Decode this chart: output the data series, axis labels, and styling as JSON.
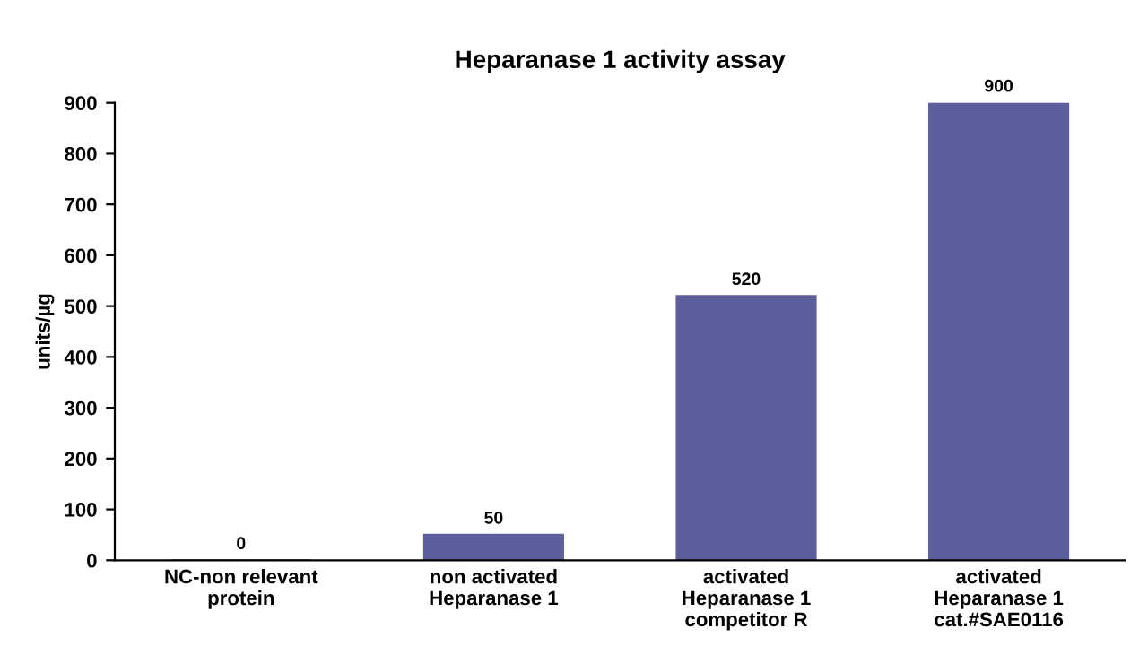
{
  "chart_data": {
    "type": "bar",
    "title": "Heparanase 1 activity assay",
    "ylabel": "units/µg",
    "categories": [
      "NC-non relevant\nprotein",
      "non activated\nHeparanase 1",
      "activated\nHeparanase 1\ncompetitor R",
      "activated\nHeparanase 1\ncat.#SAE0116"
    ],
    "values": [
      0,
      50,
      520,
      900
    ],
    "color": "#5c5f9c",
    "ylim": [
      0,
      900
    ],
    "yticks": [
      0,
      100,
      200,
      300,
      400,
      500,
      600,
      700,
      800,
      900
    ],
    "data_labels": true,
    "grid": false,
    "legend": false
  }
}
